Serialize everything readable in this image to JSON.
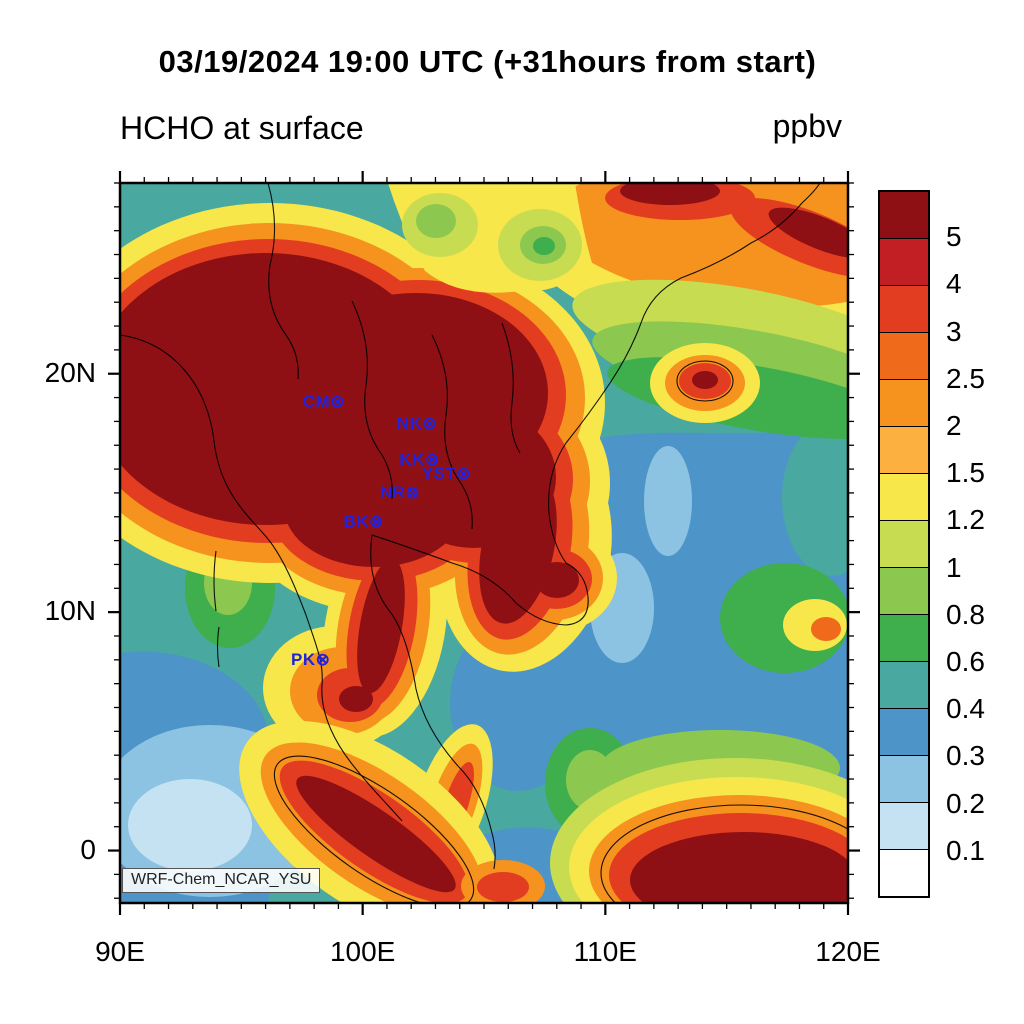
{
  "title": "03/19/2024 19:00 UTC (+31hours from start)",
  "subtitle_left": "HCHO at surface",
  "units_label": "ppbv",
  "watermark": "WRF-Chem_NCAR_YSU",
  "axes": {
    "x_ticks": [
      {
        "lon": 90,
        "label": "90E"
      },
      {
        "lon": 100,
        "label": "100E"
      },
      {
        "lon": 110,
        "label": "110E"
      },
      {
        "lon": 120,
        "label": "120E"
      }
    ],
    "y_ticks": [
      {
        "lat": 20,
        "label": "20N"
      },
      {
        "lat": 10,
        "label": "10N"
      },
      {
        "lat": 0,
        "label": "0"
      }
    ]
  },
  "colorbar": {
    "labels": [
      "5",
      "4",
      "3",
      "2.5",
      "2",
      "1.5",
      "1.2",
      "1",
      "0.8",
      "0.6",
      "0.4",
      "0.3",
      "0.2",
      "0.1"
    ],
    "colors": [
      "#8e1014",
      "#c21f24",
      "#e23d20",
      "#ef6a1a",
      "#f6921e",
      "#fbb040",
      "#f7e74a",
      "#c8dc52",
      "#8cc84f",
      "#3fae4c",
      "#49a8a0",
      "#4d95c9",
      "#8cc3e2",
      "#c4e2f2",
      "#ffffff"
    ]
  },
  "chart_data": {
    "type": "heatmap",
    "title": "03/19/2024 19:00 UTC (+31hours from start)",
    "variable": "HCHO at surface",
    "units": "ppbv",
    "x_tick_labels": [
      "90E",
      "100E",
      "110E",
      "120E"
    ],
    "y_tick_labels": [
      "20N",
      "10N",
      "0"
    ],
    "x_range_deg_east": [
      90,
      120
    ],
    "y_range_deg_north": [
      -2.2,
      28
    ],
    "contour_levels_ppbv": [
      0.1,
      0.2,
      0.3,
      0.4,
      0.6,
      0.8,
      1.0,
      1.2,
      1.5,
      2.0,
      2.5,
      3.0,
      4.0,
      5.0
    ],
    "legend_position": "right",
    "grid": false,
    "model_run_label": "WRF-Chem_NCAR_YSU",
    "stations": [
      {
        "id": "CM",
        "lon": 98.9,
        "lat": 18.8
      },
      {
        "id": "NK",
        "lon": 102.7,
        "lat": 17.9
      },
      {
        "id": "KK",
        "lon": 102.8,
        "lat": 16.4
      },
      {
        "id": "YST",
        "lon": 104.1,
        "lat": 15.8
      },
      {
        "id": "NR",
        "lon": 102.0,
        "lat": 15.0
      },
      {
        "id": "BK",
        "lon": 100.5,
        "lat": 13.8
      },
      {
        "id": "PK",
        "lon": 98.3,
        "lat": 8.0
      }
    ],
    "field_summary": [
      {
        "region": "Myanmar / Thailand / Laos land mass (NW)",
        "value_ppbv": ">5"
      },
      {
        "region": "Top-center band near 101-105E, 26-28N",
        "value_ppbv": "0.8-1.5"
      },
      {
        "region": "Southern China coast (NE)",
        "value_ppbv": "1.5-4"
      },
      {
        "region": "Hainan area blob",
        "value_ppbv": "3-5"
      },
      {
        "region": "Vietnam coastal strip",
        "value_ppbv": "3->5"
      },
      {
        "region": "South China Sea",
        "value_ppbv": "0.2-0.6"
      },
      {
        "region": "Gulf of Thailand",
        "value_ppbv": "0.3-0.4"
      },
      {
        "region": "Andaman Sea (W ocean)",
        "value_ppbv": "0.3-0.8"
      },
      {
        "region": "SW equatorial ocean",
        "value_ppbv": "0.1-0.3"
      },
      {
        "region": "Sumatra island band",
        "value_ppbv": ">5"
      },
      {
        "region": "Borneo (SE)",
        "value_ppbv": ">5"
      },
      {
        "region": "Phuket / peninsula spot",
        "value_ppbv": "2->5"
      }
    ]
  }
}
